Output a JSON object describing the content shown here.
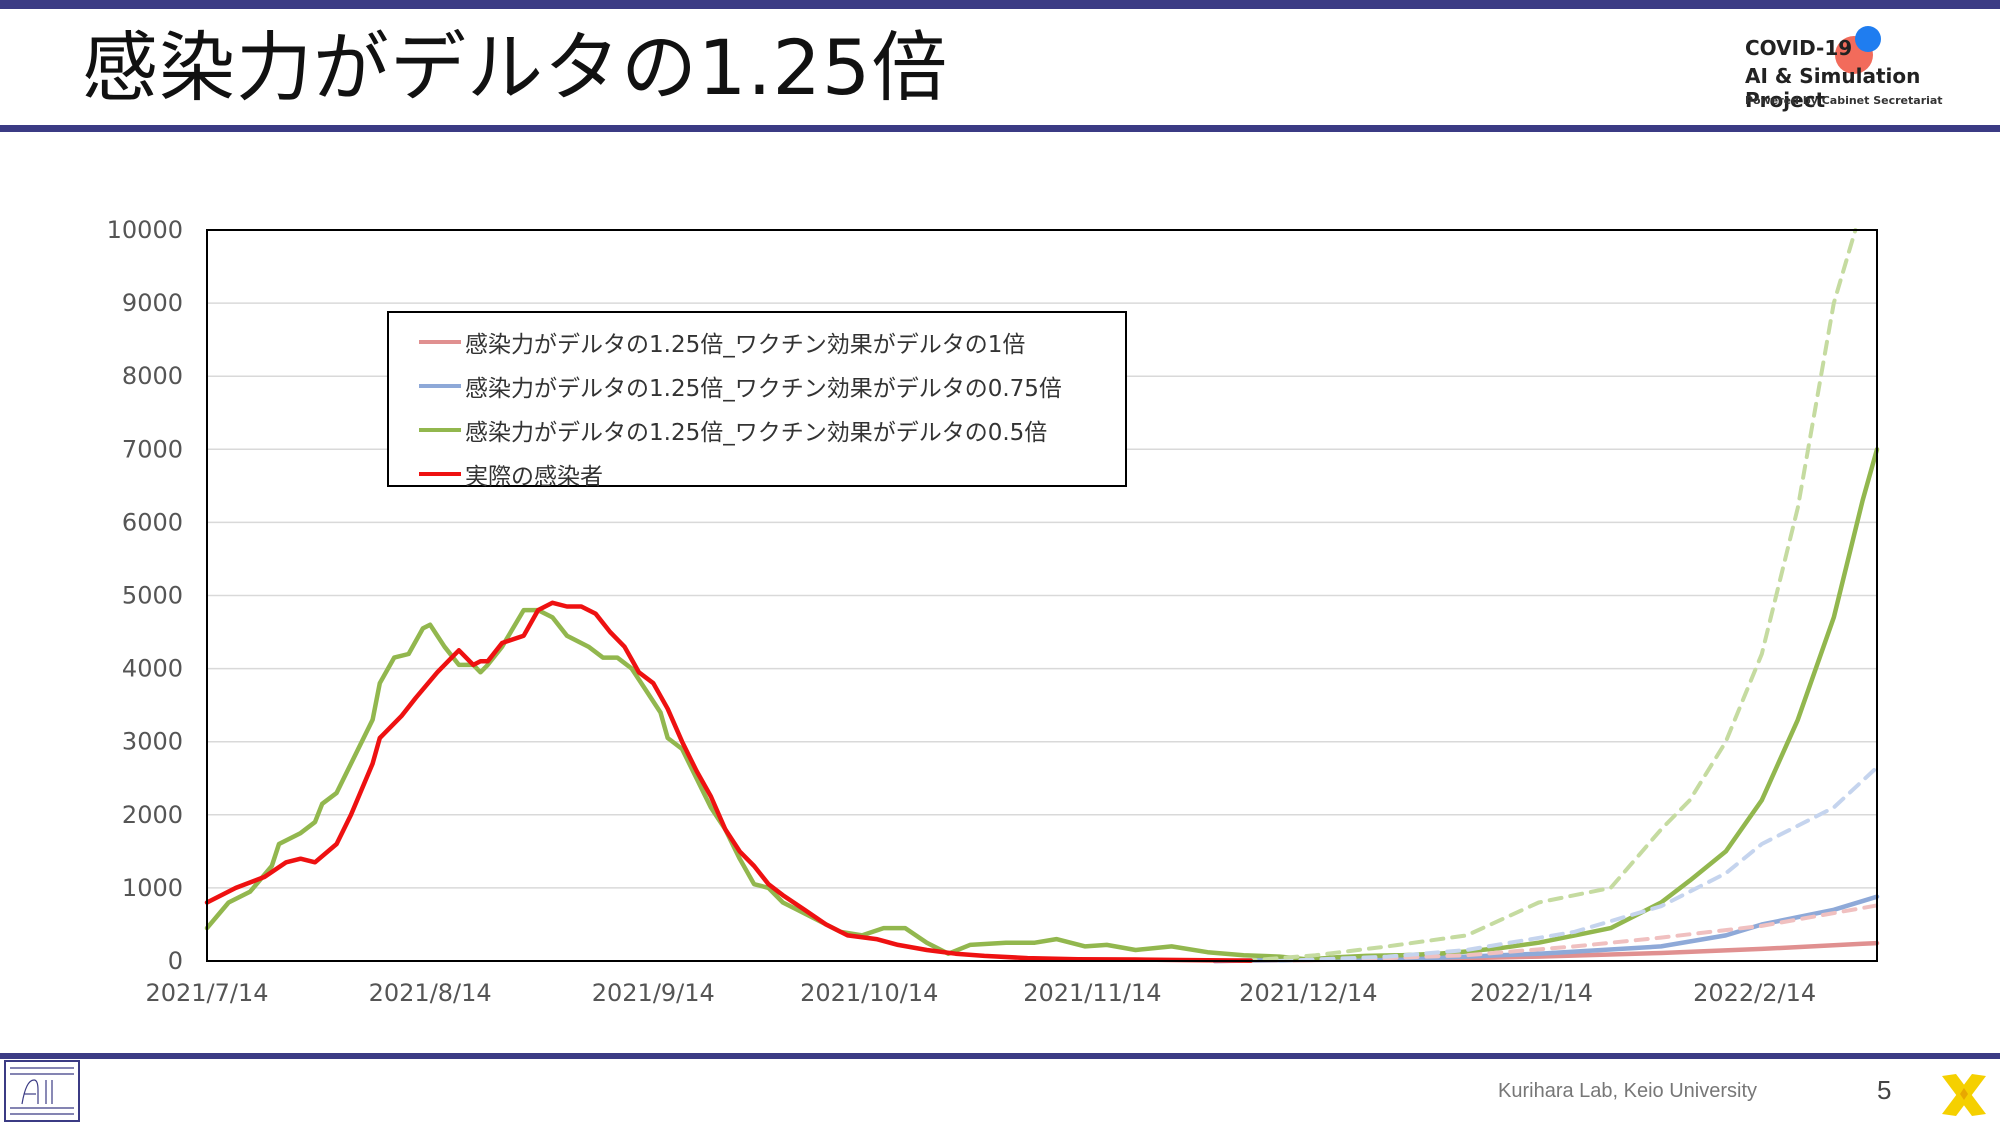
{
  "slide": {
    "title": "感染力がデルタの1.25倍",
    "page_number": "5",
    "footer_credit": "Kurihara Lab, Keio University",
    "accent_color": "#3b3b84"
  },
  "project_logo": {
    "line1": "COVID-19",
    "line2": "AI & Simulation Project",
    "line3": "Powered by Cabinet Secretariat"
  },
  "chart_data": {
    "type": "line",
    "title": "",
    "xlabel": "",
    "ylabel": "",
    "ylim": [
      0,
      10000
    ],
    "yticks": [
      0,
      1000,
      2000,
      3000,
      4000,
      5000,
      6000,
      7000,
      8000,
      9000,
      10000
    ],
    "xlim": [
      "2021-07-14",
      "2022-03-03"
    ],
    "xticks": [
      "2021/7/14",
      "2021/8/14",
      "2021/9/14",
      "2021/10/14",
      "2021/11/14",
      "2021/12/14",
      "2022/1/14",
      "2022/2/14"
    ],
    "xtick_dates": [
      "2021-07-14",
      "2021-08-14",
      "2021-09-14",
      "2021-10-14",
      "2021-11-14",
      "2021-12-14",
      "2022-01-14",
      "2022-02-14"
    ],
    "grid": true,
    "legend_position": "upper-left",
    "series": [
      {
        "name": "感染力がデルタの1.25倍_ワクチン効果がデルタの1倍",
        "color": "#e09090",
        "style": "solid",
        "points": [
          [
            "2021-12-01",
            0
          ],
          [
            "2021-12-15",
            15
          ],
          [
            "2022-01-01",
            30
          ],
          [
            "2022-01-15",
            60
          ],
          [
            "2022-02-01",
            110
          ],
          [
            "2022-02-15",
            165
          ],
          [
            "2022-03-01",
            235
          ],
          [
            "2022-03-03",
            245
          ]
        ]
      },
      {
        "name": "感染力がデルタの1.25倍_ワクチン効果がデルタの0.75倍",
        "color": "#8ea9d8",
        "style": "solid",
        "points": [
          [
            "2021-12-01",
            0
          ],
          [
            "2021-12-15",
            20
          ],
          [
            "2022-01-01",
            45
          ],
          [
            "2022-01-15",
            100
          ],
          [
            "2022-02-01",
            200
          ],
          [
            "2022-02-10",
            350
          ],
          [
            "2022-02-15",
            500
          ],
          [
            "2022-02-25",
            700
          ],
          [
            "2022-03-03",
            880
          ]
        ]
      },
      {
        "name": "感染力がデルタの1.25倍_ワクチン効果がデルタの0.5倍",
        "color": "#92b74e",
        "style": "solid",
        "points": [
          [
            "2021-07-14",
            450
          ],
          [
            "2021-07-17",
            800
          ],
          [
            "2021-07-20",
            950
          ],
          [
            "2021-07-23",
            1300
          ],
          [
            "2021-07-24",
            1600
          ],
          [
            "2021-07-27",
            1750
          ],
          [
            "2021-07-29",
            1900
          ],
          [
            "2021-07-30",
            2150
          ],
          [
            "2021-08-01",
            2300
          ],
          [
            "2021-08-04",
            2900
          ],
          [
            "2021-08-06",
            3300
          ],
          [
            "2021-08-07",
            3800
          ],
          [
            "2021-08-09",
            4150
          ],
          [
            "2021-08-11",
            4200
          ],
          [
            "2021-08-13",
            4550
          ],
          [
            "2021-08-14",
            4600
          ],
          [
            "2021-08-16",
            4300
          ],
          [
            "2021-08-18",
            4050
          ],
          [
            "2021-08-20",
            4050
          ],
          [
            "2021-08-21",
            3950
          ],
          [
            "2021-08-22",
            4050
          ],
          [
            "2021-08-24",
            4300
          ],
          [
            "2021-08-27",
            4800
          ],
          [
            "2021-08-29",
            4800
          ],
          [
            "2021-08-31",
            4700
          ],
          [
            "2021-09-02",
            4450
          ],
          [
            "2021-09-05",
            4300
          ],
          [
            "2021-09-07",
            4150
          ],
          [
            "2021-09-09",
            4150
          ],
          [
            "2021-09-11",
            4000
          ],
          [
            "2021-09-13",
            3700
          ],
          [
            "2021-09-15",
            3400
          ],
          [
            "2021-09-16",
            3050
          ],
          [
            "2021-09-18",
            2900
          ],
          [
            "2021-09-20",
            2500
          ],
          [
            "2021-09-22",
            2100
          ],
          [
            "2021-09-24",
            1800
          ],
          [
            "2021-09-26",
            1400
          ],
          [
            "2021-09-28",
            1050
          ],
          [
            "2021-09-30",
            1000
          ],
          [
            "2021-10-02",
            800
          ],
          [
            "2021-10-04",
            700
          ],
          [
            "2021-10-07",
            550
          ],
          [
            "2021-10-10",
            400
          ],
          [
            "2021-10-13",
            350
          ],
          [
            "2021-10-16",
            450
          ],
          [
            "2021-10-19",
            450
          ],
          [
            "2021-10-22",
            250
          ],
          [
            "2021-10-25",
            100
          ],
          [
            "2021-10-28",
            220
          ],
          [
            "2021-11-02",
            250
          ],
          [
            "2021-11-06",
            250
          ],
          [
            "2021-11-09",
            300
          ],
          [
            "2021-11-13",
            200
          ],
          [
            "2021-11-16",
            220
          ],
          [
            "2021-11-20",
            150
          ],
          [
            "2021-11-25",
            200
          ],
          [
            "2021-11-30",
            120
          ],
          [
            "2021-12-05",
            80
          ],
          [
            "2021-12-10",
            60
          ],
          [
            "2021-12-14",
            20
          ],
          [
            "2021-12-18",
            50
          ],
          [
            "2021-12-22",
            70
          ],
          [
            "2021-12-27",
            80
          ],
          [
            "2022-01-01",
            100
          ],
          [
            "2022-01-05",
            130
          ],
          [
            "2022-01-10",
            180
          ],
          [
            "2022-01-15",
            250
          ],
          [
            "2022-01-20",
            350
          ],
          [
            "2022-01-25",
            450
          ],
          [
            "2022-02-01",
            800
          ],
          [
            "2022-02-05",
            1100
          ],
          [
            "2022-02-10",
            1500
          ],
          [
            "2022-02-15",
            2200
          ],
          [
            "2022-02-20",
            3300
          ],
          [
            "2022-02-25",
            4700
          ],
          [
            "2022-03-01",
            6300
          ],
          [
            "2022-03-03",
            7000
          ]
        ]
      },
      {
        "name": "感染力がデルタの1.25倍_ワクチン効果がデルタの1倍 (dashed)",
        "color": "#f0c0c0",
        "style": "dashed",
        "points": [
          [
            "2021-12-10",
            0
          ],
          [
            "2021-12-25",
            40
          ],
          [
            "2022-01-05",
            80
          ],
          [
            "2022-01-20",
            200
          ],
          [
            "2022-02-01",
            320
          ],
          [
            "2022-02-15",
            480
          ],
          [
            "2022-03-03",
            760
          ]
        ]
      },
      {
        "name": "感染力がデルタの1.25倍_ワクチン効果がデルタの0.75倍 (dashed)",
        "color": "#c5d4ee",
        "style": "dashed",
        "points": [
          [
            "2021-12-10",
            0
          ],
          [
            "2021-12-25",
            60
          ],
          [
            "2022-01-05",
            150
          ],
          [
            "2022-01-20",
            400
          ],
          [
            "2022-02-01",
            750
          ],
          [
            "2022-02-10",
            1200
          ],
          [
            "2022-02-15",
            1600
          ],
          [
            "2022-02-25",
            2100
          ],
          [
            "2022-03-03",
            2650
          ]
        ]
      },
      {
        "name": "感染力がデルタの1.25倍_ワクチン効果がデルタの0.5倍 (dashed)",
        "color": "#c5dba0",
        "style": "dashed",
        "points": [
          [
            "2021-12-05",
            0
          ],
          [
            "2021-12-15",
            80
          ],
          [
            "2021-12-25",
            200
          ],
          [
            "2022-01-05",
            350
          ],
          [
            "2022-01-15",
            800
          ],
          [
            "2022-01-25",
            1000
          ],
          [
            "2022-02-01",
            1800
          ],
          [
            "2022-02-05",
            2200
          ],
          [
            "2022-02-10",
            3000
          ],
          [
            "2022-02-15",
            4200
          ],
          [
            "2022-02-20",
            6200
          ],
          [
            "2022-02-25",
            9000
          ],
          [
            "2022-02-28",
            10000
          ]
        ]
      },
      {
        "name": "実際の感染者",
        "color": "#ee1111",
        "style": "solid",
        "points": [
          [
            "2021-07-14",
            800
          ],
          [
            "2021-07-18",
            1000
          ],
          [
            "2021-07-22",
            1150
          ],
          [
            "2021-07-25",
            1350
          ],
          [
            "2021-07-27",
            1400
          ],
          [
            "2021-07-29",
            1350
          ],
          [
            "2021-08-01",
            1600
          ],
          [
            "2021-08-03",
            2000
          ],
          [
            "2021-08-06",
            2700
          ],
          [
            "2021-08-07",
            3050
          ],
          [
            "2021-08-10",
            3350
          ],
          [
            "2021-08-12",
            3600
          ],
          [
            "2021-08-15",
            3950
          ],
          [
            "2021-08-17",
            4150
          ],
          [
            "2021-08-18",
            4250
          ],
          [
            "2021-08-20",
            4050
          ],
          [
            "2021-08-21",
            4100
          ],
          [
            "2021-08-22",
            4100
          ],
          [
            "2021-08-24",
            4350
          ],
          [
            "2021-08-27",
            4450
          ],
          [
            "2021-08-29",
            4800
          ],
          [
            "2021-08-31",
            4900
          ],
          [
            "2021-09-02",
            4850
          ],
          [
            "2021-09-04",
            4850
          ],
          [
            "2021-09-06",
            4750
          ],
          [
            "2021-09-08",
            4500
          ],
          [
            "2021-09-10",
            4300
          ],
          [
            "2021-09-12",
            3950
          ],
          [
            "2021-09-14",
            3800
          ],
          [
            "2021-09-16",
            3450
          ],
          [
            "2021-09-18",
            3000
          ],
          [
            "2021-09-20",
            2600
          ],
          [
            "2021-09-22",
            2250
          ],
          [
            "2021-09-24",
            1800
          ],
          [
            "2021-09-26",
            1500
          ],
          [
            "2021-09-28",
            1300
          ],
          [
            "2021-09-30",
            1050
          ],
          [
            "2021-10-02",
            900
          ],
          [
            "2021-10-05",
            700
          ],
          [
            "2021-10-08",
            500
          ],
          [
            "2021-10-11",
            350
          ],
          [
            "2021-10-15",
            300
          ],
          [
            "2021-10-18",
            220
          ],
          [
            "2021-10-22",
            150
          ],
          [
            "2021-10-26",
            100
          ],
          [
            "2021-10-30",
            70
          ],
          [
            "2021-11-05",
            40
          ],
          [
            "2021-11-12",
            25
          ],
          [
            "2021-11-20",
            20
          ],
          [
            "2021-11-30",
            10
          ],
          [
            "2021-12-06",
            5
          ]
        ]
      }
    ]
  },
  "legend": {
    "items": [
      {
        "label": "感染力がデルタの1.25倍_ワクチン効果がデルタの1倍",
        "color": "#e09090"
      },
      {
        "label": "感染力がデルタの1.25倍_ワクチン効果がデルタの0.75倍",
        "color": "#8ea9d8"
      },
      {
        "label": "感染力がデルタの1.25倍_ワクチン効果がデルタの0.5倍",
        "color": "#92b74e"
      },
      {
        "label": "実際の感染者",
        "color": "#ee1111"
      }
    ]
  }
}
